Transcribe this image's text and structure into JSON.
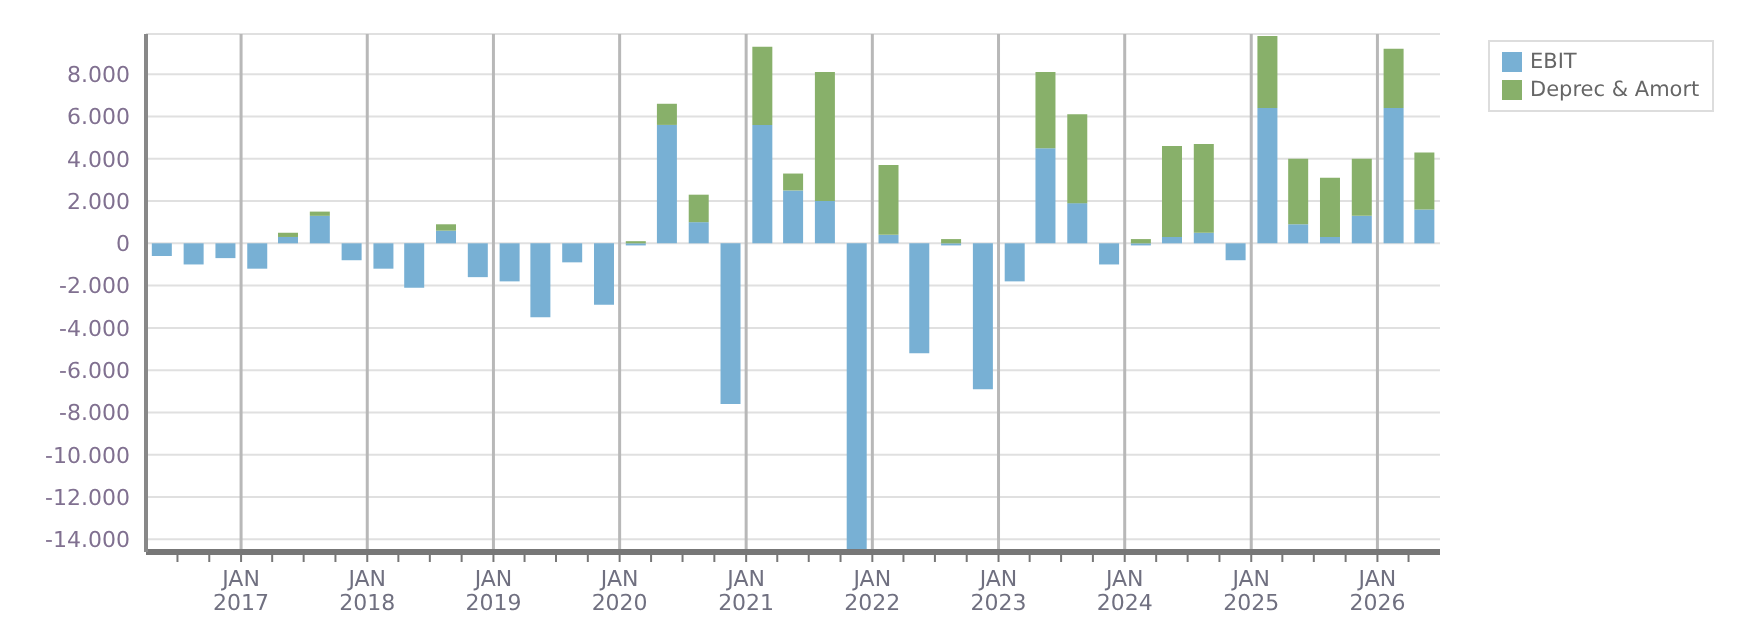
{
  "chart_data": {
    "type": "bar",
    "stacked": true,
    "x": [
      "2016-05-15",
      "2016-08-15",
      "2016-11-15",
      "2017-02-15",
      "2017-05-15",
      "2017-08-15",
      "2017-11-15",
      "2018-02-15",
      "2018-05-15",
      "2018-08-15",
      "2018-11-15",
      "2019-02-15",
      "2019-05-15",
      "2019-08-15",
      "2019-11-15",
      "2020-02-15",
      "2020-05-15",
      "2020-08-15",
      "2020-11-15",
      "2021-02-15",
      "2021-05-15",
      "2021-08-15",
      "2021-11-15",
      "2022-02-15",
      "2022-05-15",
      "2022-08-15",
      "2022-11-15",
      "2023-02-15",
      "2023-05-15",
      "2023-08-15",
      "2023-11-15",
      "2024-02-15",
      "2024-05-15",
      "2024-08-15",
      "2024-11-15",
      "2025-02-15",
      "2025-05-15",
      "2025-08-15",
      "2025-11-15",
      "2026-02-15",
      "2026-05-15"
    ],
    "series": [
      {
        "name": "EBIT",
        "color": "#78b0d4",
        "values": [
          -600,
          -1000,
          -700,
          -1200,
          300,
          1300,
          -800,
          -1200,
          -2100,
          600,
          -1600,
          -1800,
          -3500,
          -900,
          -2900,
          -100,
          5600,
          1000,
          -7600,
          5600,
          2500,
          2000,
          -14500,
          400,
          -5200,
          -100,
          -6900,
          -1800,
          4500,
          1900,
          -1000,
          -100,
          300,
          500,
          -800,
          6400,
          900,
          300,
          1300,
          6400,
          1600
        ]
      },
      {
        "name": "Deprec & Amort",
        "color": "#88b06a",
        "values": [
          null,
          null,
          null,
          null,
          200,
          200,
          null,
          null,
          null,
          300,
          null,
          null,
          null,
          null,
          null,
          100,
          1000,
          1300,
          null,
          3700,
          800,
          6100,
          null,
          3300,
          null,
          200,
          null,
          null,
          3600,
          4200,
          null,
          200,
          4300,
          4200,
          null,
          3400,
          3100,
          2800,
          2700,
          2800,
          2700
        ]
      }
    ],
    "xlim": [
      "2016-04",
      "2026-07"
    ],
    "xticks": [
      {
        "value": "2016-07",
        "label": null
      },
      {
        "value": "2016-10",
        "label": null
      },
      {
        "value": "2017-01",
        "label": "JAN 2017"
      },
      {
        "value": "2017-04",
        "label": null
      },
      {
        "value": "2017-07",
        "label": null
      },
      {
        "value": "2017-10",
        "label": null
      },
      {
        "value": "2018-01",
        "label": "JAN 2018"
      },
      {
        "value": "2018-04",
        "label": null
      },
      {
        "value": "2018-07",
        "label": null
      },
      {
        "value": "2018-10",
        "label": null
      },
      {
        "value": "2019-01",
        "label": "JAN 2019"
      },
      {
        "value": "2019-04",
        "label": null
      },
      {
        "value": "2019-07",
        "label": null
      },
      {
        "value": "2019-10",
        "label": null
      },
      {
        "value": "2020-01",
        "label": "JAN 2020"
      },
      {
        "value": "2020-04",
        "label": null
      },
      {
        "value": "2020-07",
        "label": null
      },
      {
        "value": "2020-10",
        "label": null
      },
      {
        "value": "2021-01",
        "label": "JAN 2021"
      },
      {
        "value": "2021-04",
        "label": null
      },
      {
        "value": "2021-07",
        "label": null
      },
      {
        "value": "2021-10",
        "label": null
      },
      {
        "value": "2022-01",
        "label": "JAN 2022"
      },
      {
        "value": "2022-04",
        "label": null
      },
      {
        "value": "2022-07",
        "label": null
      },
      {
        "value": "2022-10",
        "label": null
      },
      {
        "value": "2023-01",
        "label": "JAN 2023"
      },
      {
        "value": "2023-04",
        "label": null
      },
      {
        "value": "2023-07",
        "label": null
      },
      {
        "value": "2023-10",
        "label": null
      },
      {
        "value": "2024-01",
        "label": "JAN 2024"
      },
      {
        "value": "2024-04",
        "label": null
      },
      {
        "value": "2024-07",
        "label": null
      },
      {
        "value": "2024-10",
        "label": null
      },
      {
        "value": "2025-01",
        "label": "JAN 2025"
      },
      {
        "value": "2025-04",
        "label": null
      },
      {
        "value": "2025-07",
        "label": null
      },
      {
        "value": "2025-10",
        "label": null
      },
      {
        "value": "2026-01",
        "label": "JAN 2026"
      },
      {
        "value": "2026-04",
        "label": null
      }
    ],
    "ylim": [
      -14600,
      9900
    ],
    "yticks": [
      {
        "value": -14000,
        "label": "-14.000"
      },
      {
        "value": -12000,
        "label": "-12.000"
      },
      {
        "value": -10000,
        "label": "-10.000"
      },
      {
        "value": -8000,
        "label": "-8.000"
      },
      {
        "value": -6000,
        "label": "-6.000"
      },
      {
        "value": -4000,
        "label": "-4.000"
      },
      {
        "value": -2000,
        "label": "-2.000"
      },
      {
        "value": 0,
        "label": "0"
      },
      {
        "value": 2000,
        "label": "2.000"
      },
      {
        "value": 4000,
        "label": "4.000"
      },
      {
        "value": 6000,
        "label": "6.000"
      },
      {
        "value": 8000,
        "label": "8.000"
      }
    ],
    "grid": true,
    "legend": "top right"
  }
}
